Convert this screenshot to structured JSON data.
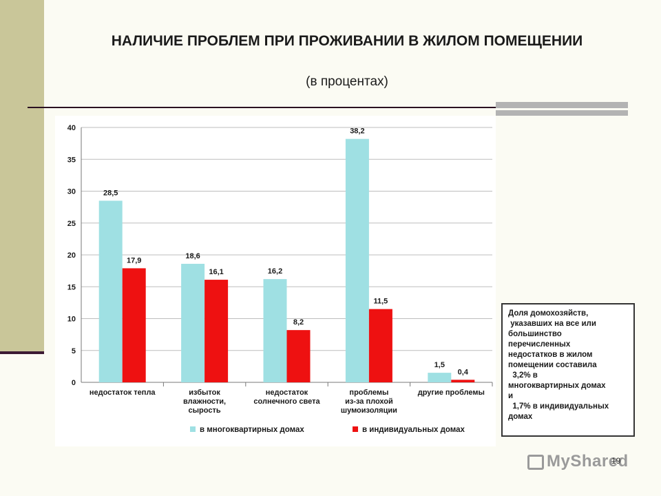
{
  "title": "НАЛИЧИЕ ПРОБЛЕМ ПРИ ПРОЖИВАНИИ В ЖИЛОМ ПОМЕЩЕНИИ",
  "subtitle": "(в процентах)",
  "note_lines": [
    "Доля домохозяйств,",
    " указавших на все или",
    "большинство",
    "перечисленных",
    "недостатков в жилом",
    "помещении составила",
    "  3,2% в",
    "многоквартирных домах",
    "и",
    "  1,7% в индивидуальных",
    "домах"
  ],
  "page_number": "19",
  "watermark": "MyShared",
  "colors": {
    "series1": "#9fe0e3",
    "series2": "#ee1111",
    "accent": "#c9c699"
  },
  "chart_data": {
    "type": "bar",
    "title": "",
    "xlabel": "",
    "ylabel": "",
    "ylim": [
      0,
      40
    ],
    "yticks": [
      "0",
      "5",
      "10",
      "15",
      "20",
      "25",
      "30",
      "35",
      "40"
    ],
    "grid": true,
    "legend_position": "bottom",
    "categories": [
      [
        "недостаток тепла"
      ],
      [
        "избыток",
        "влажности,",
        "сырость"
      ],
      [
        "недостаток",
        "солнечного света"
      ],
      [
        "проблемы",
        "из-за плохой",
        "шумоизоляции"
      ],
      [
        "другие проблемы"
      ]
    ],
    "series": [
      {
        "name": "в многоквартирных домах",
        "values": [
          28.5,
          18.6,
          16.2,
          38.2,
          1.5
        ],
        "labels": [
          "28,5",
          "18,6",
          "16,2",
          "38,2",
          "1,5"
        ]
      },
      {
        "name": "в индивидуальных домах",
        "values": [
          17.9,
          16.1,
          8.2,
          11.5,
          0.4
        ],
        "labels": [
          "17,9",
          "16,1",
          "8,2",
          "11,5",
          "0,4"
        ]
      }
    ]
  }
}
